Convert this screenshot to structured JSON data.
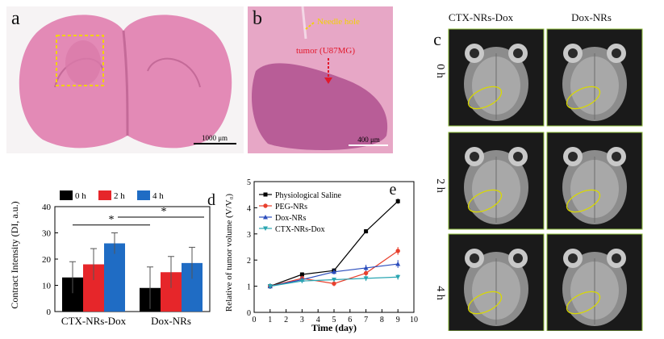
{
  "panels": {
    "a": {
      "label": "a",
      "scale_bar": "1000 μm"
    },
    "b": {
      "label": "b",
      "annotation_needle": "Needle hole",
      "annotation_tumor": "tumor (U87MG)",
      "scale_bar": "400 μm"
    },
    "c": {
      "label": "c",
      "col_headers": [
        "CTX-NRs-Dox",
        "Dox-NRs"
      ],
      "row_labels": [
        "0 h",
        "2 h",
        "4 h"
      ]
    },
    "d": {
      "label": "d"
    },
    "e": {
      "label": "e"
    }
  },
  "colors": {
    "he_stain": "#e38ab6",
    "bar_0h": "#000000",
    "bar_2h": "#e6262a",
    "bar_4h": "#1f6cc4",
    "series_saline": "#000000",
    "series_peg": "#e8402d",
    "series_dox": "#2b4dbd",
    "series_ctx": "#2aa6b2"
  },
  "chart_data": [
    {
      "type": "bar",
      "panel": "d",
      "categories": [
        "CTX-NRs-Dox",
        "Dox-NRs"
      ],
      "series": [
        {
          "name": "0 h",
          "values": [
            13,
            9
          ],
          "errors": [
            6,
            8
          ]
        },
        {
          "name": "2 h",
          "values": [
            18,
            15
          ],
          "errors": [
            6,
            6
          ]
        },
        {
          "name": "4 h",
          "values": [
            26,
            18.5
          ],
          "errors": [
            4,
            6
          ]
        }
      ],
      "ylabel": "Contract Intensity (DI, a.u.)",
      "ylim": [
        0,
        40
      ],
      "yticks": [
        0,
        10,
        20,
        30,
        40
      ],
      "significance": [
        "*",
        "*"
      ],
      "legend": "top"
    },
    {
      "type": "line",
      "panel": "e",
      "x": [
        1,
        3,
        5,
        7,
        9
      ],
      "series": [
        {
          "name": "Physiological Saline",
          "values": [
            1.0,
            1.45,
            1.6,
            3.1,
            4.25
          ],
          "errors": [
            0.1,
            0.08,
            0.08,
            0.08,
            0.1
          ]
        },
        {
          "name": "PEG-NRs",
          "values": [
            1.0,
            1.3,
            1.1,
            1.5,
            2.35
          ],
          "errors": [
            0.1,
            0.1,
            0.1,
            0.1,
            0.15
          ]
        },
        {
          "name": "Dox-NRs",
          "values": [
            1.0,
            1.25,
            1.55,
            1.7,
            1.85
          ],
          "errors": [
            0.1,
            0.1,
            0.1,
            0.12,
            0.15
          ]
        },
        {
          "name": "CTX-NRs-Dox",
          "values": [
            1.0,
            1.2,
            1.25,
            1.3,
            1.35
          ],
          "errors": [
            0.1,
            0.08,
            0.08,
            0.1,
            0.1
          ]
        }
      ],
      "xlabel": "Time (day)",
      "ylabel": "Relative of tumor volume (V/V₀)",
      "xlim": [
        0,
        10
      ],
      "ylim": [
        0,
        5
      ],
      "xticks": [
        0,
        1,
        2,
        3,
        4,
        5,
        6,
        7,
        8,
        9,
        10
      ],
      "yticks": [
        0,
        1,
        2,
        3,
        4,
        5
      ],
      "legend": "top-left"
    }
  ]
}
